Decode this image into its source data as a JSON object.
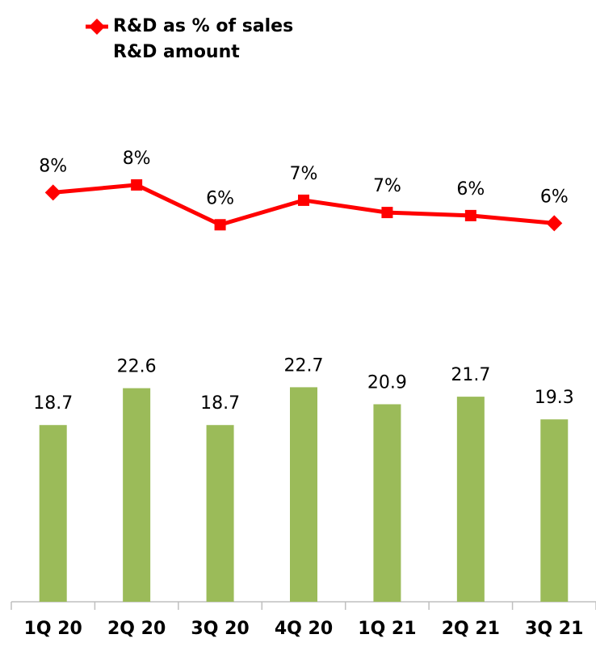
{
  "chart_data": {
    "type": "bar_line",
    "categories": [
      "1Q 20",
      "2Q 20",
      "3Q 20",
      "4Q 20",
      "1Q 21",
      "2Q 21",
      "3Q 21"
    ],
    "ylim": [
      0,
      60
    ],
    "y2lim": [
      -18.8,
      18.2
    ],
    "legend": "top-left",
    "series": [
      {
        "name": "R&D as % of sales",
        "type": "line",
        "axis": "y2",
        "color": "#ff0000",
        "values": [
          7.9,
          8.4,
          5.8,
          7.4,
          6.6,
          6.4,
          5.9
        ],
        "value_labels": [
          "8%",
          "8%",
          "6%",
          "7%",
          "7%",
          "6%",
          "6%"
        ]
      },
      {
        "name": "R&D amount",
        "type": "bar",
        "color": "#9bbb59",
        "values": [
          18.7,
          22.6,
          18.7,
          22.7,
          20.9,
          21.7,
          19.3
        ]
      }
    ]
  }
}
